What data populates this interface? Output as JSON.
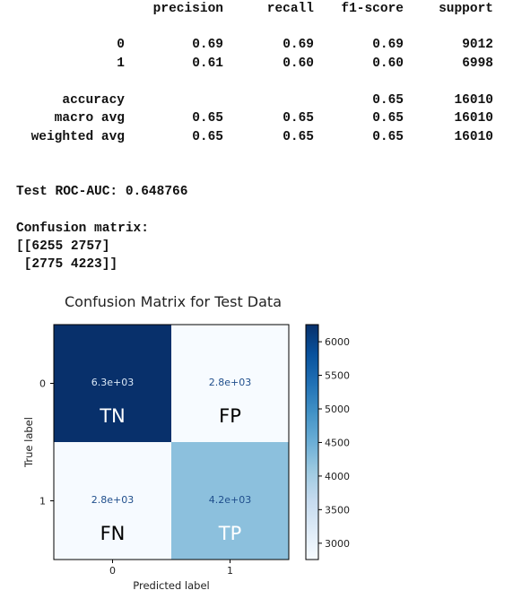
{
  "report": {
    "headers": {
      "precision": "precision",
      "recall": "recall",
      "f1": "f1-score",
      "support": "support"
    },
    "rows": [
      {
        "label": "0",
        "precision": "0.69",
        "recall": "0.69",
        "f1": "0.69",
        "support": "9012"
      },
      {
        "label": "1",
        "precision": "0.61",
        "recall": "0.60",
        "f1": "0.60",
        "support": "6998"
      },
      {
        "label": "accuracy",
        "precision": "",
        "recall": "",
        "f1": "0.65",
        "support": "16010"
      },
      {
        "label": "macro avg",
        "precision": "0.65",
        "recall": "0.65",
        "f1": "0.65",
        "support": "16010"
      },
      {
        "label": "weighted avg",
        "precision": "0.65",
        "recall": "0.65",
        "f1": "0.65",
        "support": "16010"
      }
    ]
  },
  "roc_auc_line": "Test ROC-AUC: 0.648766",
  "confusion_text": {
    "heading": "Confusion matrix:",
    "line1": "[[6255 2757]",
    "line2": " [2775 4223]]"
  },
  "chart_data": {
    "type": "heatmap",
    "title": "Confusion Matrix for Test Data",
    "xlabel": "Predicted label",
    "ylabel": "True label",
    "x_tick_labels": [
      "0",
      "1"
    ],
    "y_tick_labels": [
      "0",
      "1"
    ],
    "values": [
      [
        6255,
        2757
      ],
      [
        2775,
        4223
      ]
    ],
    "cell_text": [
      [
        "6.3e+03",
        "2.8e+03"
      ],
      [
        "2.8e+03",
        "4.2e+03"
      ]
    ],
    "cell_tags": [
      [
        "TN",
        "FP"
      ],
      [
        "FN",
        "TP"
      ]
    ],
    "colormap": "Blues",
    "colorbar": {
      "min": 2757,
      "max": 6255,
      "ticks": [
        3000,
        3500,
        4000,
        4500,
        5000,
        5500,
        6000
      ]
    }
  }
}
